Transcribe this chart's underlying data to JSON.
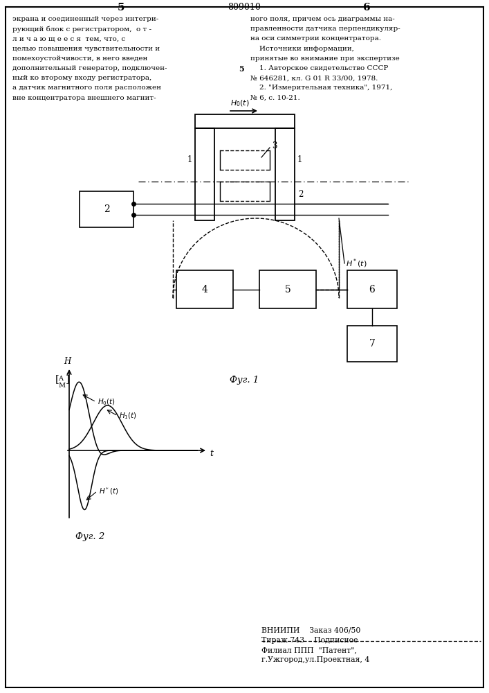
{
  "page_width": 7.07,
  "page_height": 10.0,
  "bg_color": "#ffffff",
  "header_number": "809010",
  "left_col_number": "5",
  "right_col_number": "6",
  "left_text_lines": [
    "экрана и соединенный через интегри-",
    "рующий блок с регистратором,  о т -",
    "л и ч а ю щ е е с я  тем, что, с",
    "целью повышения чувствительности и",
    "помехоустойчивости, в него введен",
    "дополнительный генератор, подключен-",
    "ный ко второму входу регистратора,",
    "а датчик магнитного поля расположен",
    "вне концентратора внешнего магнит-"
  ],
  "right_text_lines": [
    "ного поля, причем ось диаграммы на-",
    "правленности датчика перпендикуляр-",
    "на оси симметрии концентратора.",
    "    Источники информации,",
    "принятые во внимание при экспертизе",
    "    1. Авторское свидетельство СССР",
    "№ 646281, кл. G 01 R 33/00, 1978.",
    "    2. \"Измерительная техника\", 1971,",
    "№ 6, с. 10-21."
  ],
  "fig1_caption": "Фуг. 1",
  "fig2_caption": "Фуг. 2",
  "vnipi_line1": "ВНИИПИ    Заказ 406/50",
  "vnipi_line2": "Тираж 743    Подписное",
  "vnipi_line3": "Филиал ППП  \"Патент\",",
  "vnipi_line4": "г.Ужгород,ул.Проектная, 4"
}
